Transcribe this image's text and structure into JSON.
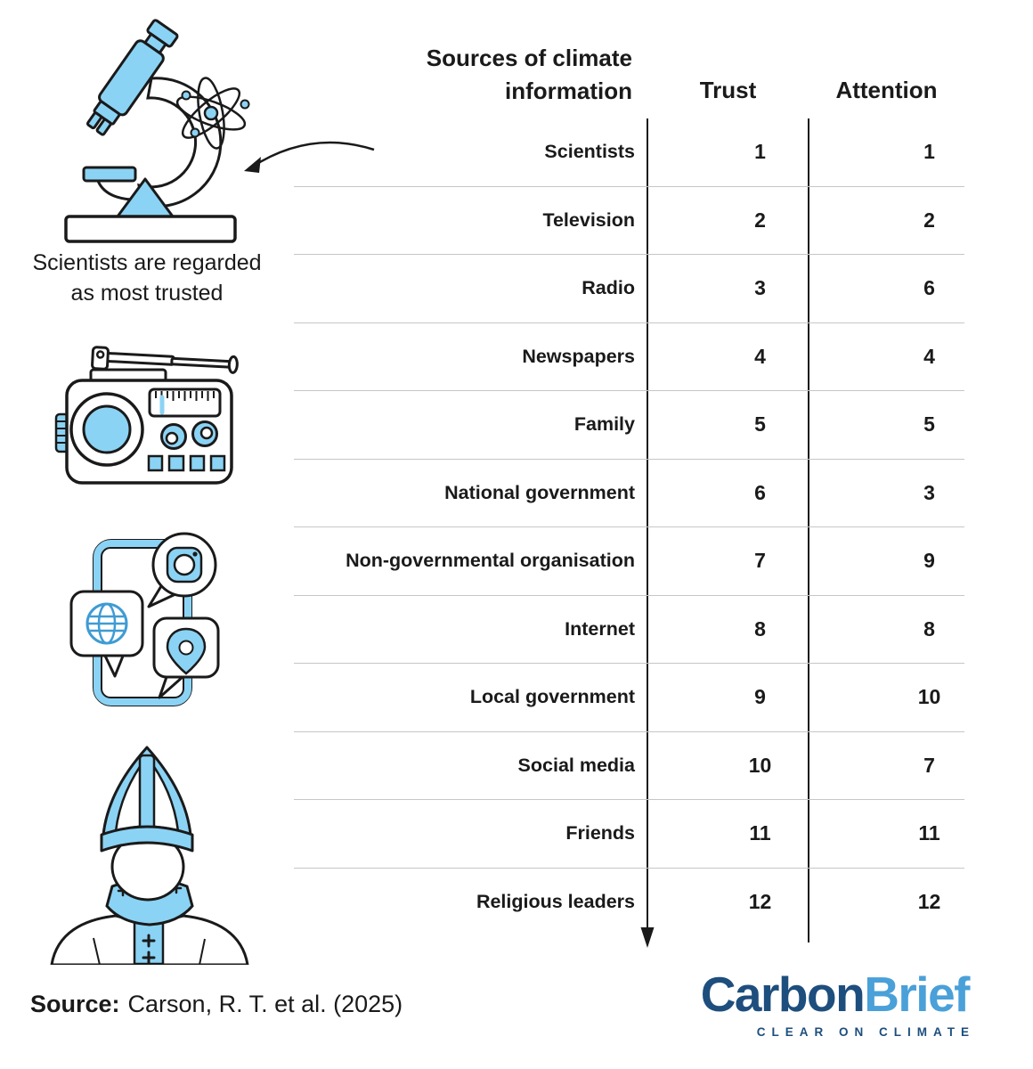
{
  "table": {
    "title_line1": "Sources of climate",
    "title_line2": "information",
    "columns": {
      "trust": "Trust",
      "attention": "Attention"
    },
    "rows": [
      {
        "label": "Scientists",
        "trust": "1",
        "attention": "1"
      },
      {
        "label": "Television",
        "trust": "2",
        "attention": "2"
      },
      {
        "label": "Radio",
        "trust": "3",
        "attention": "6"
      },
      {
        "label": "Newspapers",
        "trust": "4",
        "attention": "4"
      },
      {
        "label": "Family",
        "trust": "5",
        "attention": "5"
      },
      {
        "label": "National government",
        "trust": "6",
        "attention": "3"
      },
      {
        "label": "Non-governmental organisation",
        "trust": "7",
        "attention": "9"
      },
      {
        "label": "Internet",
        "trust": "8",
        "attention": "8"
      },
      {
        "label": "Local government",
        "trust": "9",
        "attention": "10"
      },
      {
        "label": "Social media",
        "trust": "10",
        "attention": "7"
      },
      {
        "label": "Friends",
        "trust": "11",
        "attention": "11"
      },
      {
        "label": "Religious leaders",
        "trust": "12",
        "attention": "12"
      }
    ]
  },
  "annotation": {
    "line1": "Scientists are regarded",
    "line2": "as most trusted"
  },
  "source": {
    "label": "Source:",
    "citation": "Carson, R. T. et al. (2025)"
  },
  "logo": {
    "word1": "Carbon",
    "word2": "Brief",
    "tagline": "CLEAR ON CLIMATE"
  },
  "icons": {
    "microscope": "microscope-icon",
    "atom": "atom-icon",
    "radio": "radio-icon",
    "tablet_social_media": "tablet-social-media-icon",
    "religious_leader": "religious-leader-icon",
    "annotation_arrow": "curved-arrow-icon",
    "ranking_direction_arrow": "down-arrow-icon"
  },
  "colors": {
    "illustration_blue": "#8BD3F4",
    "ink": "#1A1A1A",
    "separator_gray": "#C6C6C6",
    "logo_dark_blue": "#1D4E7D",
    "logo_light_blue": "#4AA0D8"
  },
  "chart_data": {
    "type": "table",
    "title": "Sources of climate information",
    "columns": [
      "Sources of climate information",
      "Trust",
      "Attention"
    ],
    "categories": [
      "Scientists",
      "Television",
      "Radio",
      "Newspapers",
      "Family",
      "National government",
      "Non-governmental organisation",
      "Internet",
      "Local government",
      "Social media",
      "Friends",
      "Religious leaders"
    ],
    "series": [
      {
        "name": "Trust",
        "values": [
          1,
          2,
          3,
          4,
          5,
          6,
          7,
          8,
          9,
          10,
          11,
          12
        ]
      },
      {
        "name": "Attention",
        "values": [
          1,
          2,
          6,
          4,
          5,
          3,
          9,
          8,
          10,
          7,
          11,
          12
        ]
      }
    ],
    "annotation": "Scientists are regarded as most trusted",
    "source": "Carson, R. T. et al. (2025)"
  }
}
